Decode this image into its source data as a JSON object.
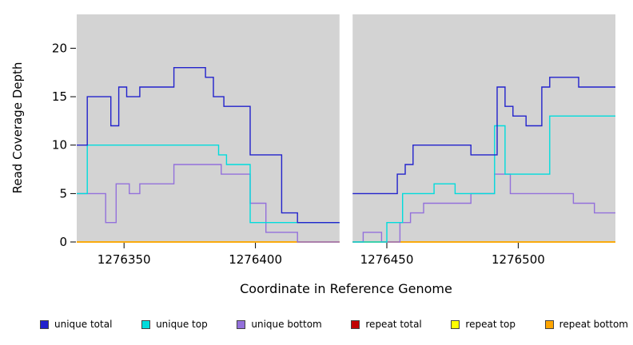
{
  "chart_data": {
    "type": "line",
    "subtype": "step-coverage",
    "title": "",
    "xlabel": "Coordinate in Reference Genome",
    "ylabel": "Read Coverage Depth",
    "xlim": [
      1276332,
      1276537
    ],
    "ylim": [
      0,
      23.5
    ],
    "xticks": [
      1276350,
      1276400,
      1276450,
      1276500
    ],
    "yticks": [
      0,
      5,
      10,
      15,
      20
    ],
    "gap": [
      1276432,
      1276437
    ],
    "plot_bg": "#d3d3d3",
    "grid": false,
    "legend_position": "bottom",
    "series": [
      {
        "name": "repeat total",
        "color": "#c00000",
        "segments": [
          {
            "end": 1276432,
            "points": [
              [
                1276332,
                0
              ]
            ]
          },
          {
            "end": 1276537,
            "points": [
              [
                1276437,
                0
              ]
            ]
          }
        ]
      },
      {
        "name": "repeat top",
        "color": "#ffff00",
        "segments": [
          {
            "end": 1276432,
            "points": [
              [
                1276332,
                0
              ]
            ]
          },
          {
            "end": 1276537,
            "points": [
              [
                1276437,
                0
              ]
            ]
          }
        ]
      },
      {
        "name": "repeat bottom",
        "color": "#ffa500",
        "segments": [
          {
            "end": 1276432,
            "points": [
              [
                1276332,
                0
              ]
            ]
          },
          {
            "end": 1276537,
            "points": [
              [
                1276437,
                0
              ]
            ]
          }
        ]
      },
      {
        "name": "unique bottom",
        "color": "#9370db",
        "segments": [
          {
            "end": 1276432,
            "points": [
              [
                1276332,
                5
              ],
              [
                1276343,
                2
              ],
              [
                1276347,
                6
              ],
              [
                1276352,
                5
              ],
              [
                1276356,
                6
              ],
              [
                1276369,
                8
              ],
              [
                1276387,
                7
              ],
              [
                1276398,
                4
              ],
              [
                1276404,
                1
              ],
              [
                1276416,
                0
              ]
            ]
          },
          {
            "end": 1276537,
            "points": [
              [
                1276437,
                0
              ],
              [
                1276441,
                1
              ],
              [
                1276448,
                0
              ],
              [
                1276455,
                2
              ],
              [
                1276459,
                3
              ],
              [
                1276464,
                4
              ],
              [
                1276482,
                5
              ],
              [
                1276491,
                7
              ],
              [
                1276497,
                5
              ],
              [
                1276521,
                4
              ],
              [
                1276529,
                3
              ]
            ]
          }
        ]
      },
      {
        "name": "unique top",
        "color": "#00dcdc",
        "segments": [
          {
            "end": 1276432,
            "points": [
              [
                1276332,
                5
              ],
              [
                1276336,
                10
              ],
              [
                1276386,
                9
              ],
              [
                1276389,
                8
              ],
              [
                1276398,
                2
              ]
            ]
          },
          {
            "end": 1276537,
            "points": [
              [
                1276437,
                0
              ],
              [
                1276450,
                2
              ],
              [
                1276456,
                5
              ],
              [
                1276468,
                6
              ],
              [
                1276476,
                5
              ],
              [
                1276491,
                12
              ],
              [
                1276495,
                7
              ],
              [
                1276512,
                13
              ]
            ]
          }
        ]
      },
      {
        "name": "unique total",
        "color": "#2222cc",
        "segments": [
          {
            "end": 1276432,
            "points": [
              [
                1276332,
                10
              ],
              [
                1276336,
                15
              ],
              [
                1276345,
                12
              ],
              [
                1276348,
                16
              ],
              [
                1276351,
                15
              ],
              [
                1276356,
                16
              ],
              [
                1276369,
                18
              ],
              [
                1276381,
                17
              ],
              [
                1276384,
                15
              ],
              [
                1276388,
                14
              ],
              [
                1276398,
                9
              ],
              [
                1276410,
                3
              ],
              [
                1276416,
                2
              ]
            ]
          },
          {
            "end": 1276537,
            "points": [
              [
                1276437,
                5
              ],
              [
                1276454,
                7
              ],
              [
                1276457,
                8
              ],
              [
                1276460,
                10
              ],
              [
                1276482,
                9
              ],
              [
                1276492,
                16
              ],
              [
                1276495,
                14
              ],
              [
                1276498,
                13
              ],
              [
                1276503,
                12
              ],
              [
                1276509,
                16
              ],
              [
                1276512,
                17
              ],
              [
                1276523,
                16
              ]
            ]
          }
        ]
      }
    ],
    "legend": [
      {
        "label": "unique total",
        "color": "#2222cc"
      },
      {
        "label": "unique top",
        "color": "#00dcdc"
      },
      {
        "label": "unique bottom",
        "color": "#9370db"
      },
      {
        "label": "repeat total",
        "color": "#c00000"
      },
      {
        "label": "repeat top",
        "color": "#ffff00"
      },
      {
        "label": "repeat bottom",
        "color": "#ffa500"
      }
    ]
  }
}
